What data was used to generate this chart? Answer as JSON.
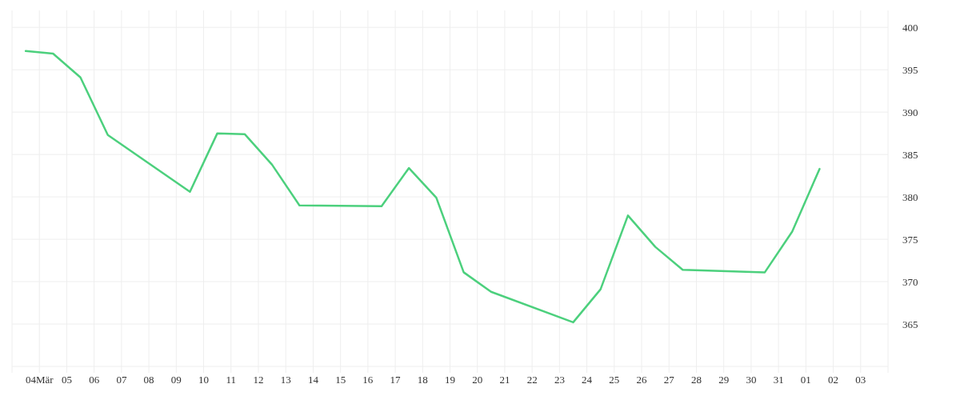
{
  "chart_data": {
    "type": "line",
    "grid": true,
    "marker": "none",
    "line_style": "solid",
    "x": [
      "--03-03T12:00",
      "--03-04T12:00",
      "--03-05T12:00",
      "--03-06T12:00",
      "--03-09T12:00",
      "--03-10T12:00",
      "--03-11T12:00",
      "--03-12T12:00",
      "--03-13T12:00",
      "--03-16T12:00",
      "--03-17T12:00",
      "--03-18T12:00",
      "--03-19T12:00",
      "--03-20T12:00",
      "--03-23T12:00",
      "--03-24T12:00",
      "--03-25T12:00",
      "--03-26T12:00",
      "--03-27T12:00",
      "--03-30T12:00",
      "--03-31T12:00",
      "--04-01T12:00"
    ],
    "series": [
      {
        "color": "#4cd07d",
        "values": [
          397.2,
          396.9,
          394.1,
          387.3,
          380.6,
          387.5,
          387.4,
          383.8,
          379.0,
          378.9,
          383.4,
          379.9,
          371.1,
          368.8,
          365.2,
          369.1,
          377.8,
          374.1,
          371.4,
          371.1,
          375.9,
          383.3
        ]
      }
    ],
    "xlim": [
      "--03-03",
      "--04-04"
    ],
    "xticks": [
      {
        "value": "--03-04",
        "label": "04Mär"
      },
      {
        "value": "--03-05",
        "label": "05"
      },
      {
        "value": "--03-06",
        "label": "06"
      },
      {
        "value": "--03-07",
        "label": "07"
      },
      {
        "value": "--03-08",
        "label": "08"
      },
      {
        "value": "--03-09",
        "label": "09"
      },
      {
        "value": "--03-10",
        "label": "10"
      },
      {
        "value": "--03-11",
        "label": "11"
      },
      {
        "value": "--03-12",
        "label": "12"
      },
      {
        "value": "--03-13",
        "label": "13"
      },
      {
        "value": "--03-14",
        "label": "14"
      },
      {
        "value": "--03-15",
        "label": "15"
      },
      {
        "value": "--03-16",
        "label": "16"
      },
      {
        "value": "--03-17",
        "label": "17"
      },
      {
        "value": "--03-18",
        "label": "18"
      },
      {
        "value": "--03-19",
        "label": "19"
      },
      {
        "value": "--03-20",
        "label": "20"
      },
      {
        "value": "--03-21",
        "label": "21"
      },
      {
        "value": "--03-22",
        "label": "22"
      },
      {
        "value": "--03-23",
        "label": "23"
      },
      {
        "value": "--03-24",
        "label": "24"
      },
      {
        "value": "--03-25",
        "label": "25"
      },
      {
        "value": "--03-26",
        "label": "26"
      },
      {
        "value": "--03-27",
        "label": "27"
      },
      {
        "value": "--03-28",
        "label": "28"
      },
      {
        "value": "--03-29",
        "label": "29"
      },
      {
        "value": "--03-30",
        "label": "30"
      },
      {
        "value": "--03-31",
        "label": "31"
      },
      {
        "value": "--04-01",
        "label": "01"
      },
      {
        "value": "--04-02",
        "label": "02"
      },
      {
        "value": "--04-03",
        "label": "03"
      }
    ],
    "ylim": [
      360,
      402
    ],
    "yticks": [
      {
        "value": 360,
        "label": null
      },
      365,
      370,
      375,
      380,
      385,
      390,
      395,
      400
    ]
  }
}
